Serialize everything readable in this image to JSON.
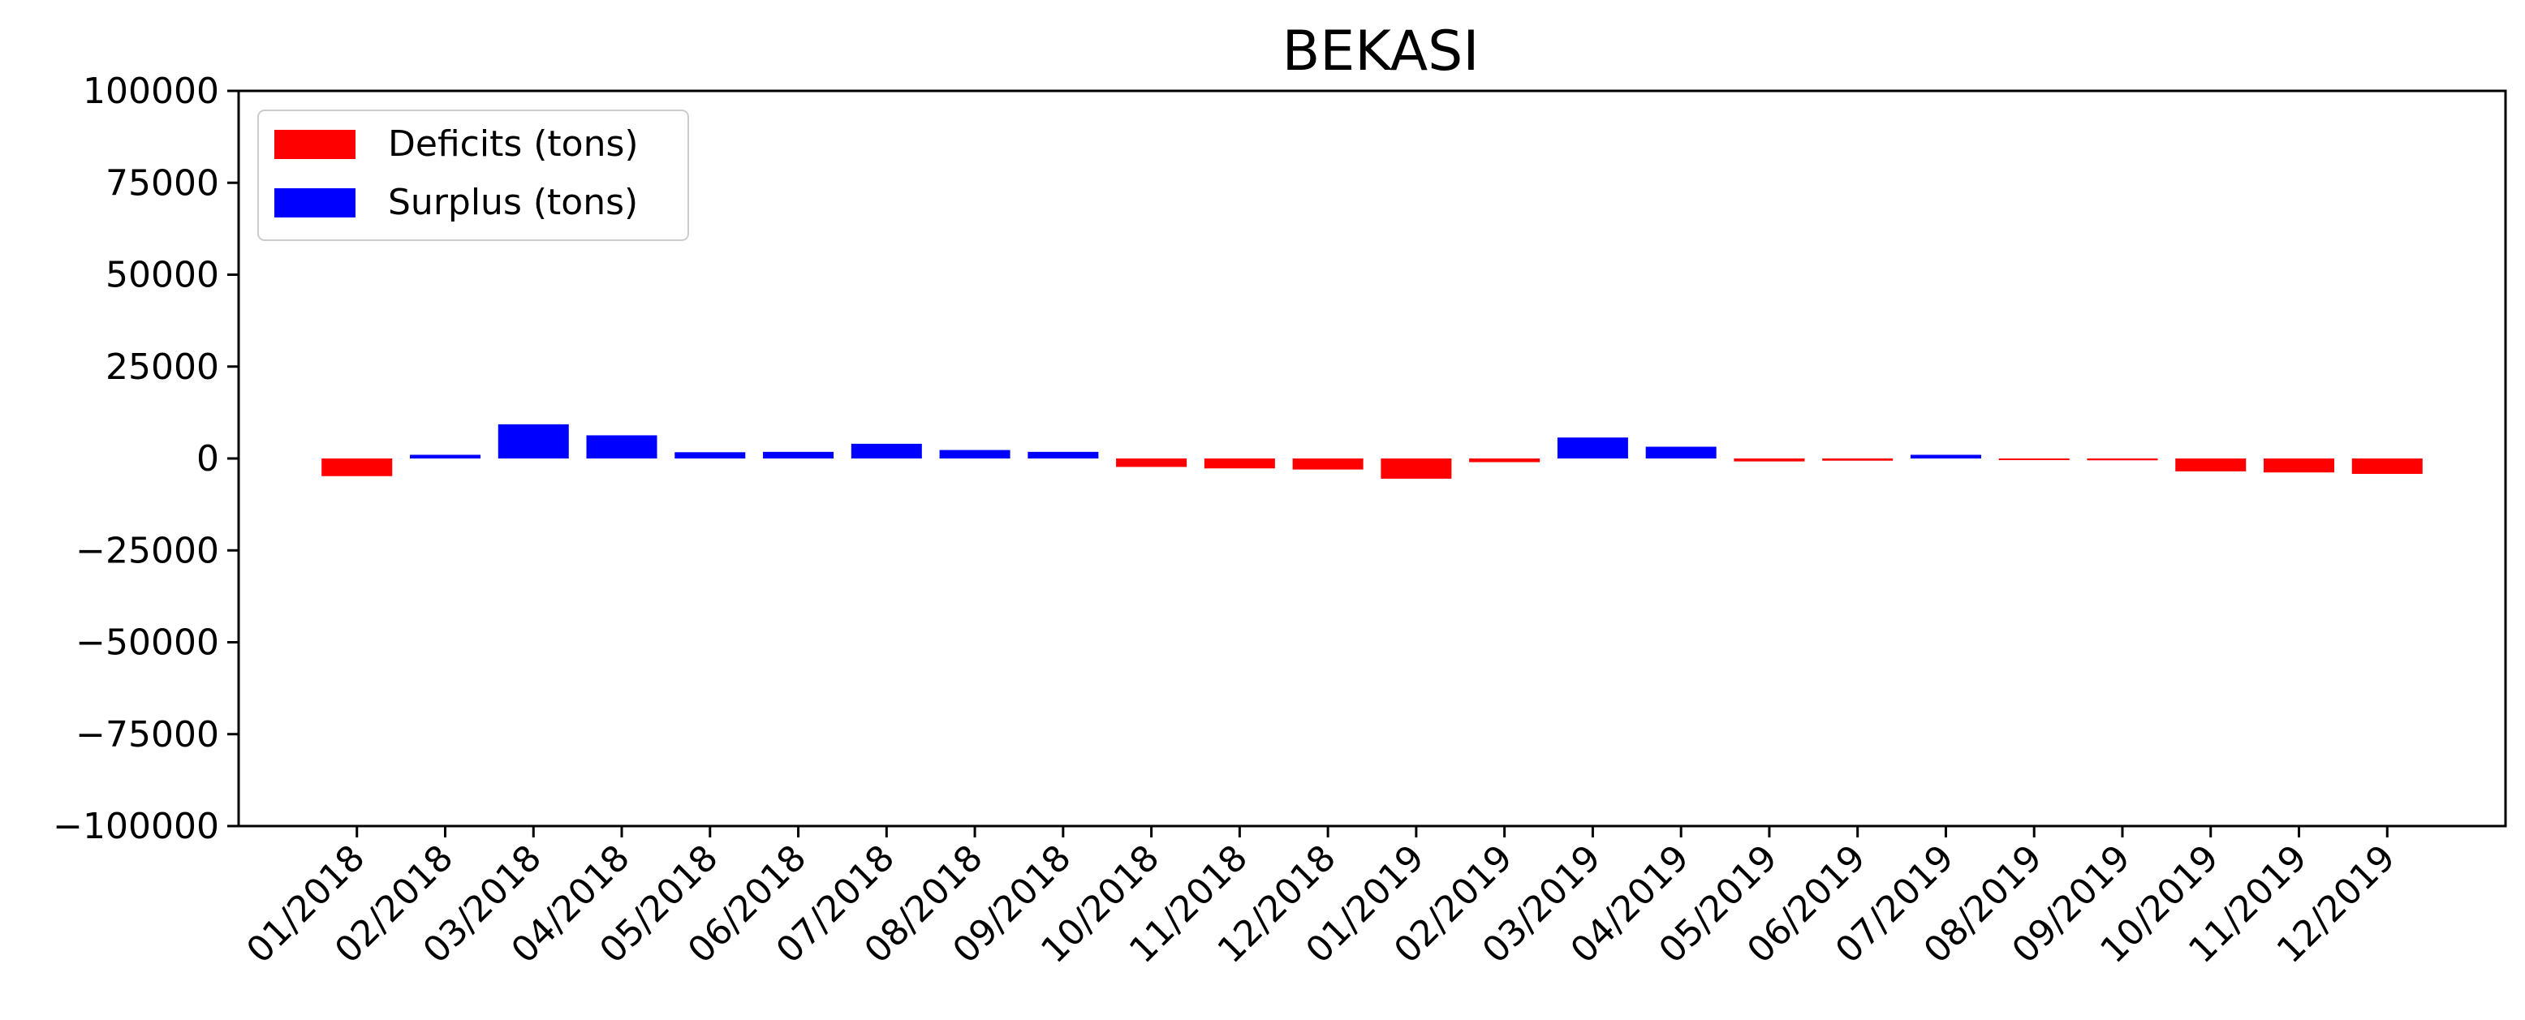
{
  "chart_data": {
    "type": "bar",
    "title": "BEKASI",
    "xlabel": "",
    "ylabel": "",
    "ylim": [
      -100000,
      100000
    ],
    "yticks": [
      100000,
      75000,
      50000,
      25000,
      0,
      -25000,
      -50000,
      -75000,
      -100000
    ],
    "ytick_labels": [
      "100000",
      "75000",
      "50000",
      "25000",
      "0",
      "−25000",
      "−50000",
      "−75000",
      "−100000"
    ],
    "categories": [
      "01/2018",
      "02/2018",
      "03/2018",
      "04/2018",
      "05/2018",
      "06/2018",
      "07/2018",
      "08/2018",
      "09/2018",
      "10/2018",
      "11/2018",
      "12/2018",
      "01/2019",
      "02/2019",
      "03/2019",
      "04/2019",
      "05/2019",
      "06/2019",
      "07/2019",
      "08/2019",
      "09/2019",
      "10/2019",
      "11/2019",
      "12/2019"
    ],
    "series": [
      {
        "name": "Deficits (tons)",
        "color": "#ff0000",
        "values": [
          -4800,
          0,
          0,
          0,
          0,
          0,
          0,
          0,
          0,
          -2300,
          -2700,
          -3000,
          -5500,
          -1000,
          0,
          0,
          -800,
          -600,
          0,
          -300,
          -500,
          -3500,
          -3800,
          -4200
        ]
      },
      {
        "name": "Surplus (tons)",
        "color": "#0000ff",
        "values": [
          0,
          1000,
          9300,
          6300,
          1700,
          1800,
          4000,
          2300,
          1800,
          0,
          0,
          0,
          0,
          0,
          5700,
          3200,
          0,
          0,
          1000,
          0,
          0,
          0,
          0,
          0
        ]
      }
    ],
    "legend_position": "top-left",
    "grid": false
  }
}
